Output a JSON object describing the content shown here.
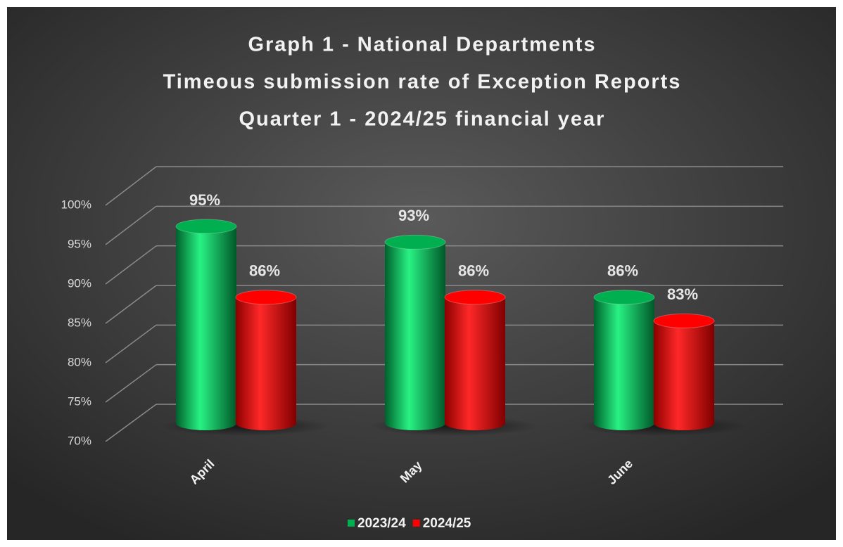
{
  "chart_data": {
    "type": "bar3d",
    "title": [
      "Graph 1 - National Departments",
      "Timeous submission rate of  Exception Reports",
      "Quarter 1 - 2024/25 financial year"
    ],
    "categories": [
      "April",
      "May",
      "June"
    ],
    "series": [
      {
        "name": "2023/24",
        "color": "#00b050",
        "values": [
          95,
          93,
          86
        ],
        "value_labels": [
          "95%",
          "93%",
          "86%"
        ]
      },
      {
        "name": "2024/25",
        "color": "#ff0000",
        "values": [
          86,
          86,
          83
        ],
        "value_labels": [
          "86%",
          "86%",
          "83%"
        ]
      }
    ],
    "ylim": [
      70,
      100
    ],
    "yticks": [
      {
        "value": 70,
        "label": "70%"
      },
      {
        "value": 75,
        "label": "75%"
      },
      {
        "value": 80,
        "label": "80%"
      },
      {
        "value": 85,
        "label": "85%"
      },
      {
        "value": 90,
        "label": "90%"
      },
      {
        "value": 95,
        "label": "95%"
      },
      {
        "value": 100,
        "label": "100%"
      }
    ],
    "grid": true,
    "legend": "bottom"
  }
}
